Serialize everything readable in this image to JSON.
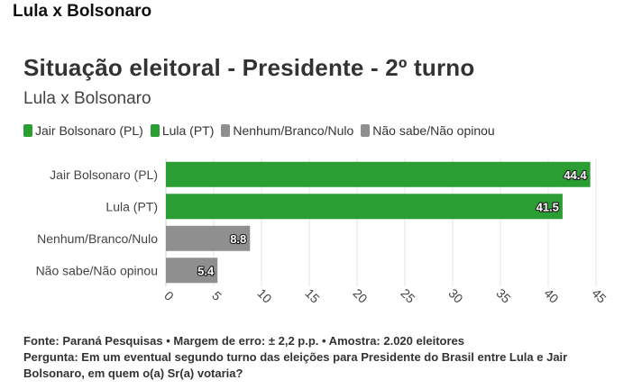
{
  "header": {
    "title": "Lula x Bolsonaro"
  },
  "chart_data": {
    "type": "bar",
    "orientation": "horizontal",
    "title": "Situação eleitoral - Presidente - 2º turno",
    "subtitle": "Lula x Bolsonaro",
    "categories": [
      "Jair Bolsonaro (PL)",
      "Lula (PT)",
      "Nenhum/Branco/Nulo",
      "Não sabe/Não opinou"
    ],
    "values": [
      44.4,
      41.5,
      8.8,
      5.4
    ],
    "value_labels": [
      "44.4",
      "41.5",
      "8.8",
      "5.4"
    ],
    "colors": [
      "#2a9d33",
      "#2a9d33",
      "#8f8f8f",
      "#8f8f8f"
    ],
    "xlim": [
      0,
      45
    ],
    "ticks": [
      0,
      5,
      10,
      15,
      20,
      25,
      30,
      35,
      40,
      45
    ],
    "tick_labels": [
      "0",
      "5",
      "10",
      "15",
      "20",
      "25",
      "30",
      "35",
      "40",
      "45"
    ],
    "grid": true,
    "legend": {
      "placement": "top-left",
      "items": [
        {
          "label": "Jair Bolsonaro (PL)",
          "color": "#2a9d33"
        },
        {
          "label": "Lula (PT)",
          "color": "#2a9d33"
        },
        {
          "label": "Nenhum/Branco/Nulo",
          "color": "#8f8f8f"
        },
        {
          "label": "Não sabe/Não opinou",
          "color": "#8f8f8f"
        }
      ]
    }
  },
  "footnote": {
    "source": "Fonte: Paraná Pesquisas • Margem de erro: ± 2,2 p.p. • Amostra: 2.020 eleitores",
    "question": "Pergunta: Em um eventual segundo turno das eleições para Presidente do Brasil entre Lula e Jair Bolsonaro, em quem o(a) Sr(a) votaria?"
  }
}
